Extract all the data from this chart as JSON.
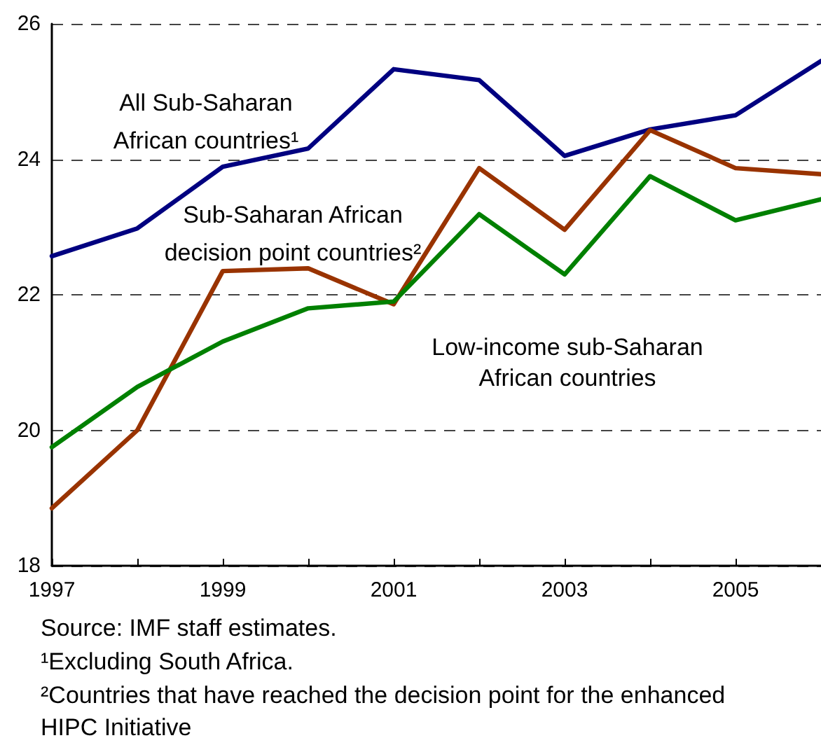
{
  "chart_data": {
    "type": "line",
    "x": [
      1997,
      1998,
      1999,
      2000,
      2001,
      2002,
      2003,
      2004,
      2005,
      2006
    ],
    "series": [
      {
        "name": "All Sub-Saharan African countries¹",
        "color": "#000080",
        "values": [
          22.57,
          22.98,
          23.89,
          24.16,
          25.33,
          25.17,
          24.05,
          24.44,
          24.65,
          25.45
        ]
      },
      {
        "name": "Sub-Saharan African decision point countries²",
        "color": "#993300",
        "values": [
          18.85,
          20.0,
          22.35,
          22.39,
          21.86,
          23.87,
          22.96,
          24.43,
          23.87,
          23.78
        ]
      },
      {
        "name": "Low-income sub-Saharan African countries",
        "color": "#008000",
        "values": [
          19.75,
          20.64,
          21.31,
          21.8,
          21.9,
          23.19,
          22.3,
          23.75,
          23.1,
          23.41
        ]
      }
    ],
    "xlim": [
      1997,
      2006
    ],
    "xticks": [
      1997,
      {
        "value": 1998,
        "label": null
      },
      1999,
      {
        "value": 2000,
        "label": null
      },
      2001,
      {
        "value": 2002,
        "label": null
      },
      2003,
      {
        "value": 2004,
        "label": null
      },
      2005
    ],
    "ylim": [
      18,
      26
    ],
    "yticks": [
      18,
      20,
      22,
      24,
      26
    ],
    "grid": "y",
    "legend": false,
    "marker": "none",
    "annotations": [
      "Source: IMF staff estimates.",
      "¹Excluding South Africa.",
      "²Countries that have reached the decision point for the enhanced HIPC Initiative"
    ]
  }
}
